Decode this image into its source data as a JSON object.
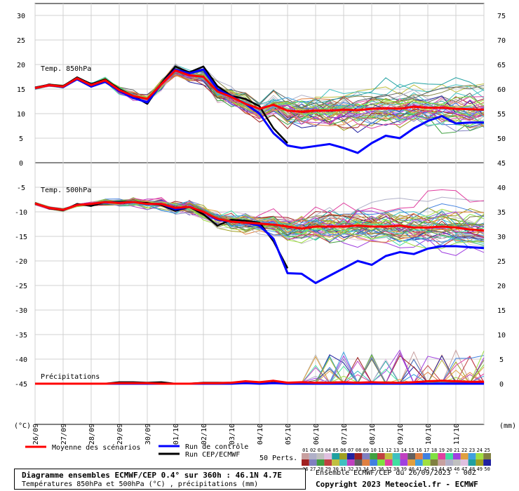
{
  "chart_data": {
    "type": "line",
    "x_dates": [
      "26/09",
      "27/09",
      "28/09",
      "29/09",
      "30/09",
      "01/10",
      "02/10",
      "03/10",
      "04/10",
      "05/10",
      "06/10",
      "07/10",
      "08/10",
      "09/10",
      "10/10",
      "11/10"
    ],
    "left_axis_unit": "(°C)",
    "right_axis_unit": "(mm)",
    "left_ticks": [
      30,
      25,
      20,
      15,
      10,
      5,
      0,
      -5,
      -10,
      -15,
      -20,
      -25,
      -30,
      -35,
      -40,
      -45
    ],
    "right_ticks": [
      75,
      70,
      65,
      60,
      55,
      50,
      45,
      40,
      35,
      30,
      25,
      20,
      15,
      10,
      5,
      0
    ],
    "panels": [
      {
        "label": "Temp. 850hPa",
        "ylim": [
          0,
          30
        ],
        "x": [
          0,
          0.5,
          1,
          1.5,
          2,
          2.5,
          3,
          3.5,
          4,
          4.5,
          5,
          5.5,
          6,
          6.5,
          7,
          7.5,
          8,
          8.5,
          9,
          9.5,
          10,
          10.5,
          11,
          11.5,
          12,
          12.5,
          13,
          13.5,
          14,
          14.5,
          15,
          15.5,
          16
        ],
        "series": [
          {
            "name": "Moyenne des scénarios",
            "color": "#ff0000",
            "width": 3,
            "values": [
              15.2,
              15.8,
              15.5,
              17.2,
              15.8,
              16.8,
              14.8,
              13.6,
              13.0,
              16.0,
              18.8,
              17.8,
              17.5,
              14.5,
              13.4,
              12.0,
              11.0,
              11.8,
              10.6,
              10.4,
              10.6,
              10.6,
              10.8,
              10.7,
              11.0,
              11.1,
              11.0,
              11.4,
              11.2,
              11.2,
              11.0,
              10.9,
              10.8
            ]
          },
          {
            "name": "Run de contrôle",
            "color": "#0000ff",
            "width": 3,
            "values": [
              15.2,
              15.8,
              15.4,
              17.0,
              15.5,
              16.5,
              14.6,
              13.2,
              12.3,
              16.0,
              19.0,
              18.2,
              19.0,
              15.0,
              13.5,
              12.0,
              10.0,
              6.0,
              3.5,
              3.0,
              3.4,
              3.8,
              3.0,
              2.0,
              4.0,
              5.5,
              5.0,
              7.0,
              8.5,
              9.5,
              8.0,
              8.2,
              8.2
            ]
          },
          {
            "name": "Run CEP/ECMWF",
            "color": "#000000",
            "width": 2.5,
            "values": [
              15.3,
              15.9,
              15.6,
              17.4,
              16.0,
              17.0,
              15.0,
              13.6,
              12.0,
              16.2,
              19.6,
              18.4,
              19.6,
              15.6,
              13.6,
              13.0,
              11.5,
              7.0,
              4.0
            ]
          }
        ]
      },
      {
        "label": "Temp. 500hPa",
        "ylim": [
          -30,
          0
        ],
        "x": [
          0,
          0.5,
          1,
          1.5,
          2,
          2.5,
          3,
          3.5,
          4,
          4.5,
          5,
          5.5,
          6,
          6.5,
          7,
          7.5,
          8,
          8.5,
          9,
          9.5,
          10,
          10.5,
          11,
          11.5,
          12,
          12.5,
          13,
          13.5,
          14,
          14.5,
          15,
          15.5,
          16
        ],
        "series": [
          {
            "name": "Moyenne des scénarios",
            "color": "#ff0000",
            "width": 3,
            "values": [
              -8.3,
              -9.2,
              -9.6,
              -8.6,
              -8.4,
              -8.0,
              -8.2,
              -8.0,
              -8.4,
              -8.4,
              -9.2,
              -9.0,
              -10.0,
              -11.4,
              -12.0,
              -12.2,
              -12.4,
              -12.6,
              -13.0,
              -13.4,
              -13.0,
              -13.0,
              -13.0,
              -12.8,
              -13.0,
              -13.0,
              -12.8,
              -13.2,
              -13.2,
              -13.0,
              -13.2,
              -13.6,
              -13.8
            ]
          },
          {
            "name": "Run de contrôle",
            "color": "#0000ff",
            "width": 3,
            "values": [
              -8.3,
              -9.2,
              -9.6,
              -8.6,
              -8.4,
              -8.0,
              -8.2,
              -8.0,
              -8.4,
              -8.4,
              -9.5,
              -9.0,
              -10.0,
              -11.6,
              -12.0,
              -12.2,
              -12.8,
              -15.5,
              -22.5,
              -22.6,
              -24.5,
              -23.0,
              -21.5,
              -20.0,
              -20.8,
              -19.0,
              -18.2,
              -18.6,
              -17.5,
              -17.0,
              -17.0,
              -17.2,
              -17.4
            ]
          },
          {
            "name": "Run CEP/ECMWF",
            "color": "#000000",
            "width": 2.5,
            "values": [
              -8.2,
              -9.3,
              -9.7,
              -8.4,
              -8.8,
              -8.0,
              -8.0,
              -8.0,
              -8.2,
              -8.6,
              -9.8,
              -9.0,
              -10.5,
              -12.8,
              -11.6,
              -11.8,
              -12.2,
              -16.0,
              -21.5
            ]
          }
        ]
      },
      {
        "label": "Précipitations",
        "ylim": [
          0,
          15
        ],
        "x": [
          0,
          0.5,
          1,
          1.5,
          2,
          2.5,
          3,
          3.5,
          4,
          4.5,
          5,
          5.5,
          6,
          6.5,
          7,
          7.5,
          8,
          8.5,
          9,
          9.5,
          10,
          10.5,
          11,
          11.5,
          12,
          12.5,
          13,
          13.5,
          14,
          14.5,
          15,
          15.5,
          16
        ],
        "series": [
          {
            "name": "Moyenne des scénarios",
            "color": "#ff0000",
            "width": 3,
            "values": [
              0,
              0,
              0,
              0,
              0,
              0,
              0.1,
              0.1,
              0.1,
              0,
              0,
              0,
              0.1,
              0.1,
              0.2,
              0.5,
              0.3,
              0.6,
              0.2,
              0.3,
              0.2,
              0.2,
              0.3,
              0.2,
              0.3,
              0.2,
              0.2,
              0.3,
              0.5,
              0.6,
              0.5,
              0.4,
              0.4
            ]
          },
          {
            "name": "Run de contrôle",
            "color": "#0000ff",
            "width": 3,
            "values": [
              0,
              0,
              0,
              0,
              0,
              0,
              0,
              0,
              0,
              0,
              0,
              0,
              0,
              0,
              0,
              0.1,
              0,
              0.1,
              0,
              0,
              0,
              0,
              0,
              0,
              0,
              0,
              0,
              0,
              0,
              0,
              0,
              0,
              0
            ]
          },
          {
            "name": "Run CEP/ECMWF",
            "color": "#000000",
            "width": 2.5,
            "values": [
              0,
              0,
              0,
              0,
              0,
              0,
              0.3,
              0.3,
              0.2,
              0.3,
              0,
              0,
              0.2,
              0.2,
              0.2,
              0.2,
              0,
              0.2,
              0
            ]
          }
        ]
      }
    ],
    "legend": {
      "mean_label": "Moyenne des scénarios",
      "control_label": "Run de contrôle",
      "ecmwf_label": "Run CEP/ECMWF",
      "perts_label": "50 Perts.",
      "pert_numbers_top": [
        "01",
        "02",
        "03",
        "04",
        "05",
        "06",
        "07",
        "08",
        "09",
        "10",
        "11",
        "12",
        "13",
        "14",
        "15",
        "16",
        "17",
        "18",
        "19",
        "20",
        "21",
        "22",
        "23",
        "24",
        "25"
      ],
      "pert_numbers_bottom": [
        "26",
        "27",
        "28",
        "29",
        "30",
        "31",
        "32",
        "33",
        "34",
        "35",
        "36",
        "37",
        "38",
        "39",
        "40",
        "41",
        "42",
        "43",
        "44",
        "45",
        "46",
        "47",
        "48",
        "49",
        "50"
      ],
      "pert_colors": [
        "#c8a0a0",
        "#b0b0c8",
        "#c0c0c0",
        "#e0c0e0",
        "#20a0a0",
        "#a0a020",
        "#2020a0",
        "#a02020",
        "#8080c0",
        "#40a040",
        "#c04040",
        "#c0c040",
        "#40c0c0",
        "#c040c0",
        "#606060",
        "#e08040",
        "#4080e0",
        "#80e040",
        "#e040a0",
        "#40e0a0",
        "#a040e0",
        "#e0a040",
        "#40a0e0",
        "#a0e040",
        "#808040"
      ]
    }
  },
  "footer": {
    "title": "Diagramme ensembles ECMWF/CEP 0.4° sur 360h : 46.1N 4.7E",
    "subtitle": "Températures 850hPa et 500hPa (°C) , précipitations (mm)",
    "run_info": "Ensemble ECMWF/CEP du 26/09/2023 - 00Z",
    "copyright": "Copyright 2023 Meteociel.fr - ECMWF"
  }
}
